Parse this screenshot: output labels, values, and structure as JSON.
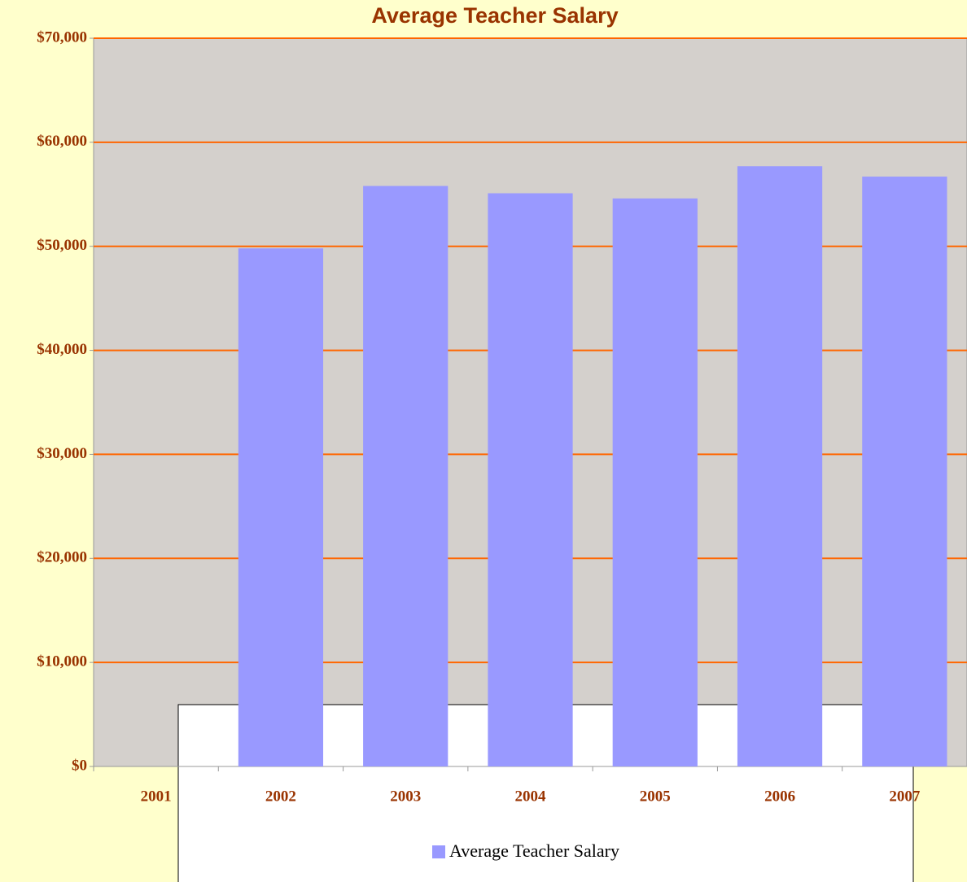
{
  "chart_data": {
    "type": "bar",
    "title": "Average Teacher Salary",
    "categories": [
      "2001",
      "2002",
      "2003",
      "2004",
      "2005",
      "2006",
      "2007"
    ],
    "series": [
      {
        "name": "Average Teacher Salary",
        "color": "#9999ff",
        "values": [
          null,
          49800,
          55800,
          55100,
          54600,
          57700,
          56700
        ]
      }
    ],
    "ylim": [
      0,
      70000
    ],
    "yticks": [
      {
        "value": 0,
        "label": "$0"
      },
      {
        "value": 10000,
        "label": "$10,000"
      },
      {
        "value": 20000,
        "label": "$20,000"
      },
      {
        "value": 30000,
        "label": "$30,000"
      },
      {
        "value": 40000,
        "label": "$40,000"
      },
      {
        "value": 50000,
        "label": "$50,000"
      },
      {
        "value": 60000,
        "label": "$60,000"
      },
      {
        "value": 70000,
        "label": "$70,000"
      }
    ],
    "grid": true
  }
}
